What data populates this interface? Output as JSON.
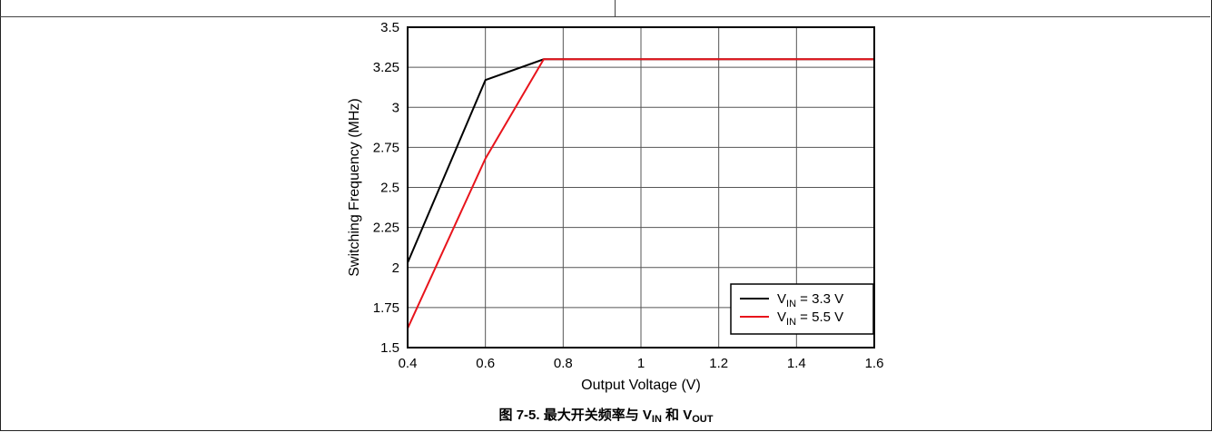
{
  "chart_data": {
    "type": "line",
    "xlabel": "Output Voltage (V)",
    "ylabel": "Switching Frequency (MHz)",
    "xlim": [
      0.4,
      1.6
    ],
    "ylim": [
      1.5,
      3.5
    ],
    "xticks": [
      "0.4",
      "0.6",
      "0.8",
      "1",
      "1.2",
      "1.4",
      "1.6"
    ],
    "yticks": [
      "1.5",
      "1.75",
      "2",
      "2.25",
      "2.5",
      "2.75",
      "3",
      "3.25",
      "3.5"
    ],
    "grid": true,
    "legend_position": "bottom-right",
    "series": [
      {
        "name": "V_IN = 3.3 V",
        "label_main": "V",
        "label_sub": "IN",
        "label_rest": " = 3.3 V",
        "color": "#000000",
        "x": [
          0.4,
          0.6,
          0.75,
          1.6
        ],
        "y": [
          2.03,
          3.17,
          3.3,
          3.3
        ]
      },
      {
        "name": "V_IN = 5.5 V",
        "label_main": "V",
        "label_sub": "IN",
        "label_rest": " = 5.5 V",
        "color": "#e8141c",
        "x": [
          0.4,
          0.6,
          0.75,
          1.6
        ],
        "y": [
          1.62,
          2.68,
          3.3,
          3.3
        ]
      }
    ]
  },
  "caption": {
    "prefix": "图 7-5. 最大开关频率与 V",
    "sub1": "IN",
    "middle": " 和 V",
    "sub2": "OUT"
  }
}
